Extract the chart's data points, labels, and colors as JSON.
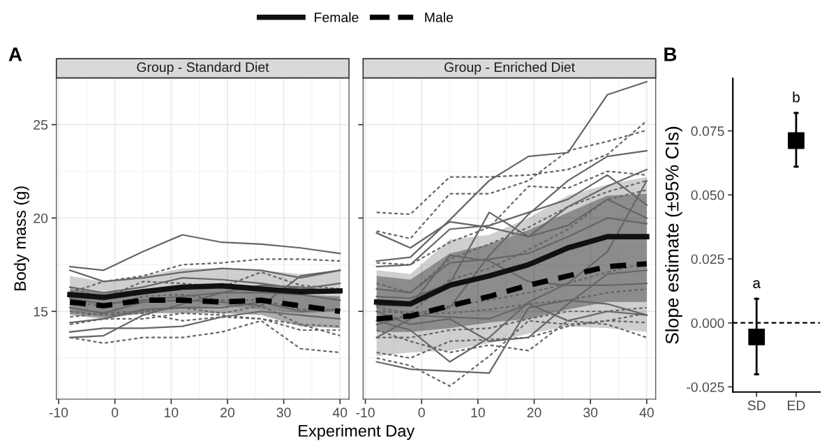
{
  "chart_data": [
    {
      "type": "line",
      "title": "Group - Standard Diet",
      "xlabel": "Experiment Day",
      "ylabel": "Body mass (g)",
      "annotations": [
        "A"
      ],
      "legend": "top",
      "grid": true,
      "xlim": [
        -10.4,
        41.6
      ],
      "xticks": [
        -10,
        0,
        10,
        20,
        30,
        40
      ],
      "ylim": [
        10.3,
        27.5
      ],
      "yticks": [
        15,
        20,
        25
      ],
      "x": [
        -8,
        -2,
        5,
        12,
        19,
        26,
        33,
        40
      ],
      "series": [
        {
          "color": "#666666",
          "line_style": "solid",
          "values": [
            17.4,
            17.2,
            18.2,
            19.1,
            18.7,
            18.6,
            18.4,
            18.1
          ]
        },
        {
          "color": "#666666",
          "line_style": "solid",
          "values": [
            17.2,
            16.6,
            16.8,
            17.1,
            17.3,
            17.2,
            16.8,
            17.2
          ]
        },
        {
          "color": "#666666",
          "line_style": "solid",
          "values": [
            16.3,
            16.0,
            16.3,
            16.8,
            16.7,
            16.5,
            16.2,
            16.5
          ]
        },
        {
          "color": "#666666",
          "line_style": "solid",
          "values": [
            15.7,
            15.4,
            15.6,
            15.8,
            16.0,
            16.0,
            15.9,
            15.6
          ]
        },
        {
          "color": "#666666",
          "line_style": "solid",
          "values": [
            14.4,
            14.6,
            15.1,
            15.2,
            15.2,
            15.5,
            15.0,
            15.1
          ]
        },
        {
          "color": "#666666",
          "line_style": "solid",
          "values": [
            13.9,
            14.1,
            14.1,
            14.2,
            14.7,
            15.0,
            14.8,
            14.6
          ]
        },
        {
          "color": "#666666",
          "line_style": "solid",
          "values": [
            13.6,
            13.7,
            14.8,
            15.4,
            16.0,
            16.4,
            16.3,
            16.0
          ]
        },
        {
          "color": "#666666",
          "line_style": "solid",
          "values": [
            15.2,
            14.9,
            15.5,
            15.6,
            15.5,
            15.3,
            16.9,
            17.2
          ]
        },
        {
          "color": "#666666",
          "line_style": "dashed",
          "values": [
            16.0,
            16.6,
            16.9,
            17.5,
            17.6,
            17.8,
            17.8,
            17.7
          ]
        },
        {
          "color": "#666666",
          "line_style": "dashed",
          "values": [
            16.3,
            15.7,
            16.6,
            16.5,
            16.3,
            17.1,
            16.4,
            16.2
          ]
        },
        {
          "color": "#666666",
          "line_style": "dashed",
          "values": [
            15.5,
            15.3,
            15.8,
            15.9,
            15.6,
            15.6,
            15.1,
            15.1
          ]
        },
        {
          "color": "#666666",
          "line_style": "dashed",
          "values": [
            14.7,
            14.9,
            15.0,
            15.2,
            14.9,
            15.3,
            14.3,
            14.2
          ]
        },
        {
          "color": "#666666",
          "line_style": "dashed",
          "values": [
            14.3,
            14.6,
            14.6,
            14.9,
            14.8,
            14.6,
            14.0,
            14.0
          ]
        },
        {
          "color": "#666666",
          "line_style": "dashed",
          "values": [
            13.6,
            13.3,
            13.6,
            13.6,
            13.9,
            14.5,
            13.0,
            12.8
          ]
        },
        {
          "color": "#666666",
          "line_style": "dashed",
          "values": [
            15.0,
            14.8,
            14.9,
            14.5,
            14.7,
            14.6,
            14.3,
            13.7
          ]
        },
        {
          "name": "Female",
          "color": "#111111",
          "line_style": "solid",
          "values": [
            15.9,
            15.75,
            16.05,
            16.3,
            16.37,
            16.2,
            16.05,
            16.1
          ],
          "lower": [
            14.9,
            14.7,
            14.9,
            15.2,
            15.3,
            15.1,
            14.9,
            15.0
          ],
          "upper": [
            16.9,
            16.6,
            16.9,
            17.3,
            17.3,
            17.2,
            17.0,
            17.2
          ]
        },
        {
          "name": "Male",
          "color": "#000000",
          "line_style": "dashed",
          "values": [
            15.5,
            15.3,
            15.6,
            15.6,
            15.5,
            15.6,
            15.3,
            15.0
          ],
          "lower": [
            14.8,
            14.6,
            14.9,
            14.9,
            14.9,
            14.8,
            14.2,
            14.1
          ],
          "upper": [
            16.2,
            16.0,
            16.2,
            16.3,
            16.2,
            16.2,
            15.9,
            15.8
          ]
        }
      ]
    },
    {
      "type": "line",
      "title": "Group - Enriched Diet",
      "legend": "top",
      "grid": true,
      "tick_labels": "x",
      "xlim": [
        -10.4,
        41.6
      ],
      "xticks": [
        -10,
        0,
        10,
        20,
        30,
        40
      ],
      "ylim": [
        10.3,
        27.5
      ],
      "yticks": [
        15,
        20,
        25
      ],
      "x": [
        -8,
        -2,
        5,
        12,
        19,
        26,
        33,
        40
      ],
      "series": [
        {
          "color": "#666666",
          "line_style": "solid",
          "values": [
            17.7,
            17.9,
            19.9,
            22.0,
            23.3,
            23.5,
            26.6,
            27.3
          ]
        },
        {
          "color": "#666666",
          "line_style": "solid",
          "values": [
            19.2,
            18.4,
            19.8,
            19.5,
            19.0,
            20.6,
            21.7,
            22.6
          ]
        },
        {
          "color": "#666666",
          "line_style": "solid",
          "values": [
            17.4,
            17.5,
            19.4,
            19.6,
            20.3,
            21.0,
            22.3,
            20.7
          ]
        },
        {
          "color": "#666666",
          "line_style": "solid",
          "values": [
            16.2,
            16.0,
            17.6,
            17.8,
            18.1,
            19.0,
            20.0,
            19.7
          ]
        },
        {
          "color": "#666666",
          "line_style": "solid",
          "values": [
            15.8,
            15.7,
            16.5,
            20.3,
            19.0,
            19.6,
            21.0,
            20.0
          ]
        },
        {
          "color": "#666666",
          "line_style": "solid",
          "values": [
            15.0,
            14.3,
            14.6,
            13.4,
            13.6,
            15.4,
            17.0,
            17.2
          ]
        },
        {
          "color": "#666666",
          "line_style": "solid",
          "values": [
            14.5,
            14.0,
            12.3,
            13.6,
            15.5,
            16.5,
            18.2,
            22.0
          ]
        },
        {
          "color": "#666666",
          "line_style": "solid",
          "values": [
            12.3,
            11.9,
            11.8,
            11.7,
            15.2,
            15.6,
            15.4,
            14.8
          ]
        },
        {
          "color": "#666666",
          "line_style": "solid",
          "values": [
            15.3,
            15.3,
            18.0,
            17.7,
            16.6,
            16.4,
            16.4,
            16.5
          ]
        },
        {
          "color": "#666666",
          "line_style": "solid",
          "values": [
            14.3,
            14.8,
            14.7,
            14.6,
            15.4,
            14.5,
            15.0,
            14.8
          ]
        },
        {
          "color": "#666666",
          "line_style": "solid",
          "values": [
            13.6,
            14.6,
            15.2,
            18.0,
            20.2,
            22.0,
            23.3,
            23.6
          ]
        },
        {
          "color": "#666666",
          "line_style": "dashed",
          "values": [
            20.3,
            20.2,
            22.2,
            22.2,
            22.3,
            22.6,
            23.4,
            25.2
          ]
        },
        {
          "color": "#666666",
          "line_style": "dashed",
          "values": [
            19.3,
            18.9,
            21.3,
            21.3,
            22.0,
            23.6,
            24.1,
            24.7
          ]
        },
        {
          "color": "#666666",
          "line_style": "dashed",
          "values": [
            17.6,
            17.5,
            18.7,
            19.5,
            21.7,
            21.6,
            22.5,
            22.3
          ]
        },
        {
          "color": "#666666",
          "line_style": "dashed",
          "values": [
            16.5,
            16.0,
            17.8,
            18.6,
            19.5,
            20.6,
            21.4,
            22.0
          ]
        },
        {
          "color": "#666666",
          "line_style": "dashed",
          "values": [
            15.2,
            14.9,
            16.7,
            17.3,
            18.3,
            19.4,
            21.0,
            21.5
          ]
        },
        {
          "color": "#666666",
          "line_style": "dashed",
          "values": [
            14.5,
            14.8,
            15.3,
            15.6,
            16.0,
            16.5,
            17.1,
            17.6
          ]
        },
        {
          "color": "#666666",
          "line_style": "dashed",
          "values": [
            13.6,
            13.6,
            14.0,
            14.1,
            14.6,
            15.0,
            15.0,
            15.2
          ]
        },
        {
          "color": "#666666",
          "line_style": "dashed",
          "values": [
            12.8,
            12.5,
            13.4,
            13.5,
            13.6,
            14.2,
            14.5,
            14.9
          ]
        },
        {
          "color": "#666666",
          "line_style": "dashed",
          "values": [
            12.5,
            12.1,
            11.0,
            12.6,
            14.5,
            14.3,
            14.5,
            14.4
          ]
        },
        {
          "color": "#666666",
          "line_style": "dashed",
          "values": [
            14.0,
            13.4,
            12.8,
            13.2,
            12.9,
            14.5,
            14.3,
            13.6
          ]
        },
        {
          "color": "#666666",
          "line_style": "dashed",
          "values": [
            15.0,
            14.9,
            14.9,
            15.1,
            15.4,
            15.6,
            16.0,
            16.2
          ]
        },
        {
          "name": "Female",
          "color": "#111111",
          "line_style": "solid",
          "values": [
            15.5,
            15.4,
            16.4,
            16.9,
            17.5,
            18.4,
            19.0,
            19.0
          ],
          "lower": [
            12.6,
            12.8,
            12.9,
            13.3,
            13.8,
            14.2,
            14.1,
            13.9
          ],
          "upper": [
            17.2,
            17.0,
            18.85,
            19.1,
            20.0,
            21.2,
            21.8,
            22.2
          ]
        },
        {
          "name": "Male",
          "color": "#000000",
          "line_style": "dashed",
          "values": [
            14.6,
            14.75,
            15.3,
            15.8,
            16.4,
            16.9,
            17.4,
            17.55
          ],
          "lower": [
            13.9,
            13.9,
            14.1,
            14.4,
            14.6,
            15.1,
            15.5,
            15.5
          ],
          "upper": [
            16.9,
            16.7,
            18.1,
            18.6,
            19.35,
            20.3,
            21.2,
            21.3
          ]
        }
      ]
    },
    {
      "type": "scatter",
      "ylabel": "Slope estimate (±95% CIs)",
      "marker": "square",
      "grid": false,
      "annotations": [
        "B",
        "a",
        "b"
      ],
      "categories": [
        "SD",
        "ED"
      ],
      "ylim": [
        -0.027,
        0.0955
      ],
      "yticks": [
        -0.025,
        0.025,
        {
          "value": 0,
          "label": "0.000"
        },
        {
          "value": 0.05,
          "label": "0.050"
        },
        0.075
      ],
      "ref_lines": [
        {
          "axis": "y",
          "value": 0,
          "line_style": "dashed",
          "color": "#000000"
        }
      ],
      "series": [
        {
          "color": "#000000",
          "values": [
            -0.0055,
            0.0712
          ],
          "errors": [
            [
              -0.0201,
              0.0094
            ],
            [
              0.061,
              0.082
            ]
          ]
        }
      ]
    }
  ]
}
